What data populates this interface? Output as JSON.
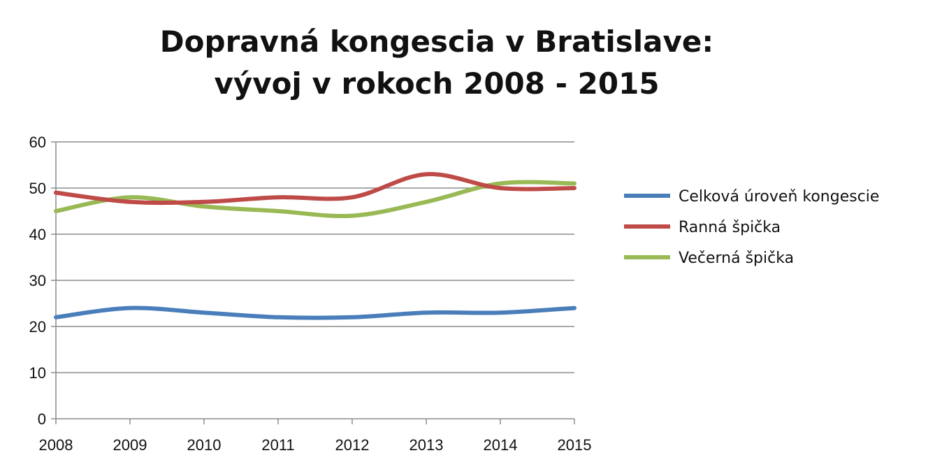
{
  "chart_data": {
    "type": "line",
    "title_line1": "Dopravná kongescia v Bratislave:",
    "title_line2": "vývoj v rokoch 2008 - 2015",
    "xlabel": "",
    "ylabel": "",
    "x": [
      "2008",
      "2009",
      "2010",
      "2011",
      "2012",
      "2013",
      "2014",
      "2015"
    ],
    "ylim": [
      0,
      60
    ],
    "yticks": [
      0,
      10,
      20,
      30,
      40,
      50,
      60
    ],
    "grid": true,
    "legend_position": "right",
    "smooth": true,
    "series": [
      {
        "name": "Celková úroveň kongescie",
        "color": "#4a7ebb",
        "values": [
          22,
          24,
          23,
          22,
          22,
          23,
          23,
          24
        ]
      },
      {
        "name": "Ranná špička",
        "color": "#be4b48",
        "values": [
          49,
          47,
          47,
          48,
          48,
          53,
          50,
          50
        ]
      },
      {
        "name": "Večerná špička",
        "color": "#98b954",
        "values": [
          45,
          48,
          46,
          45,
          44,
          47,
          51,
          51
        ]
      }
    ]
  }
}
